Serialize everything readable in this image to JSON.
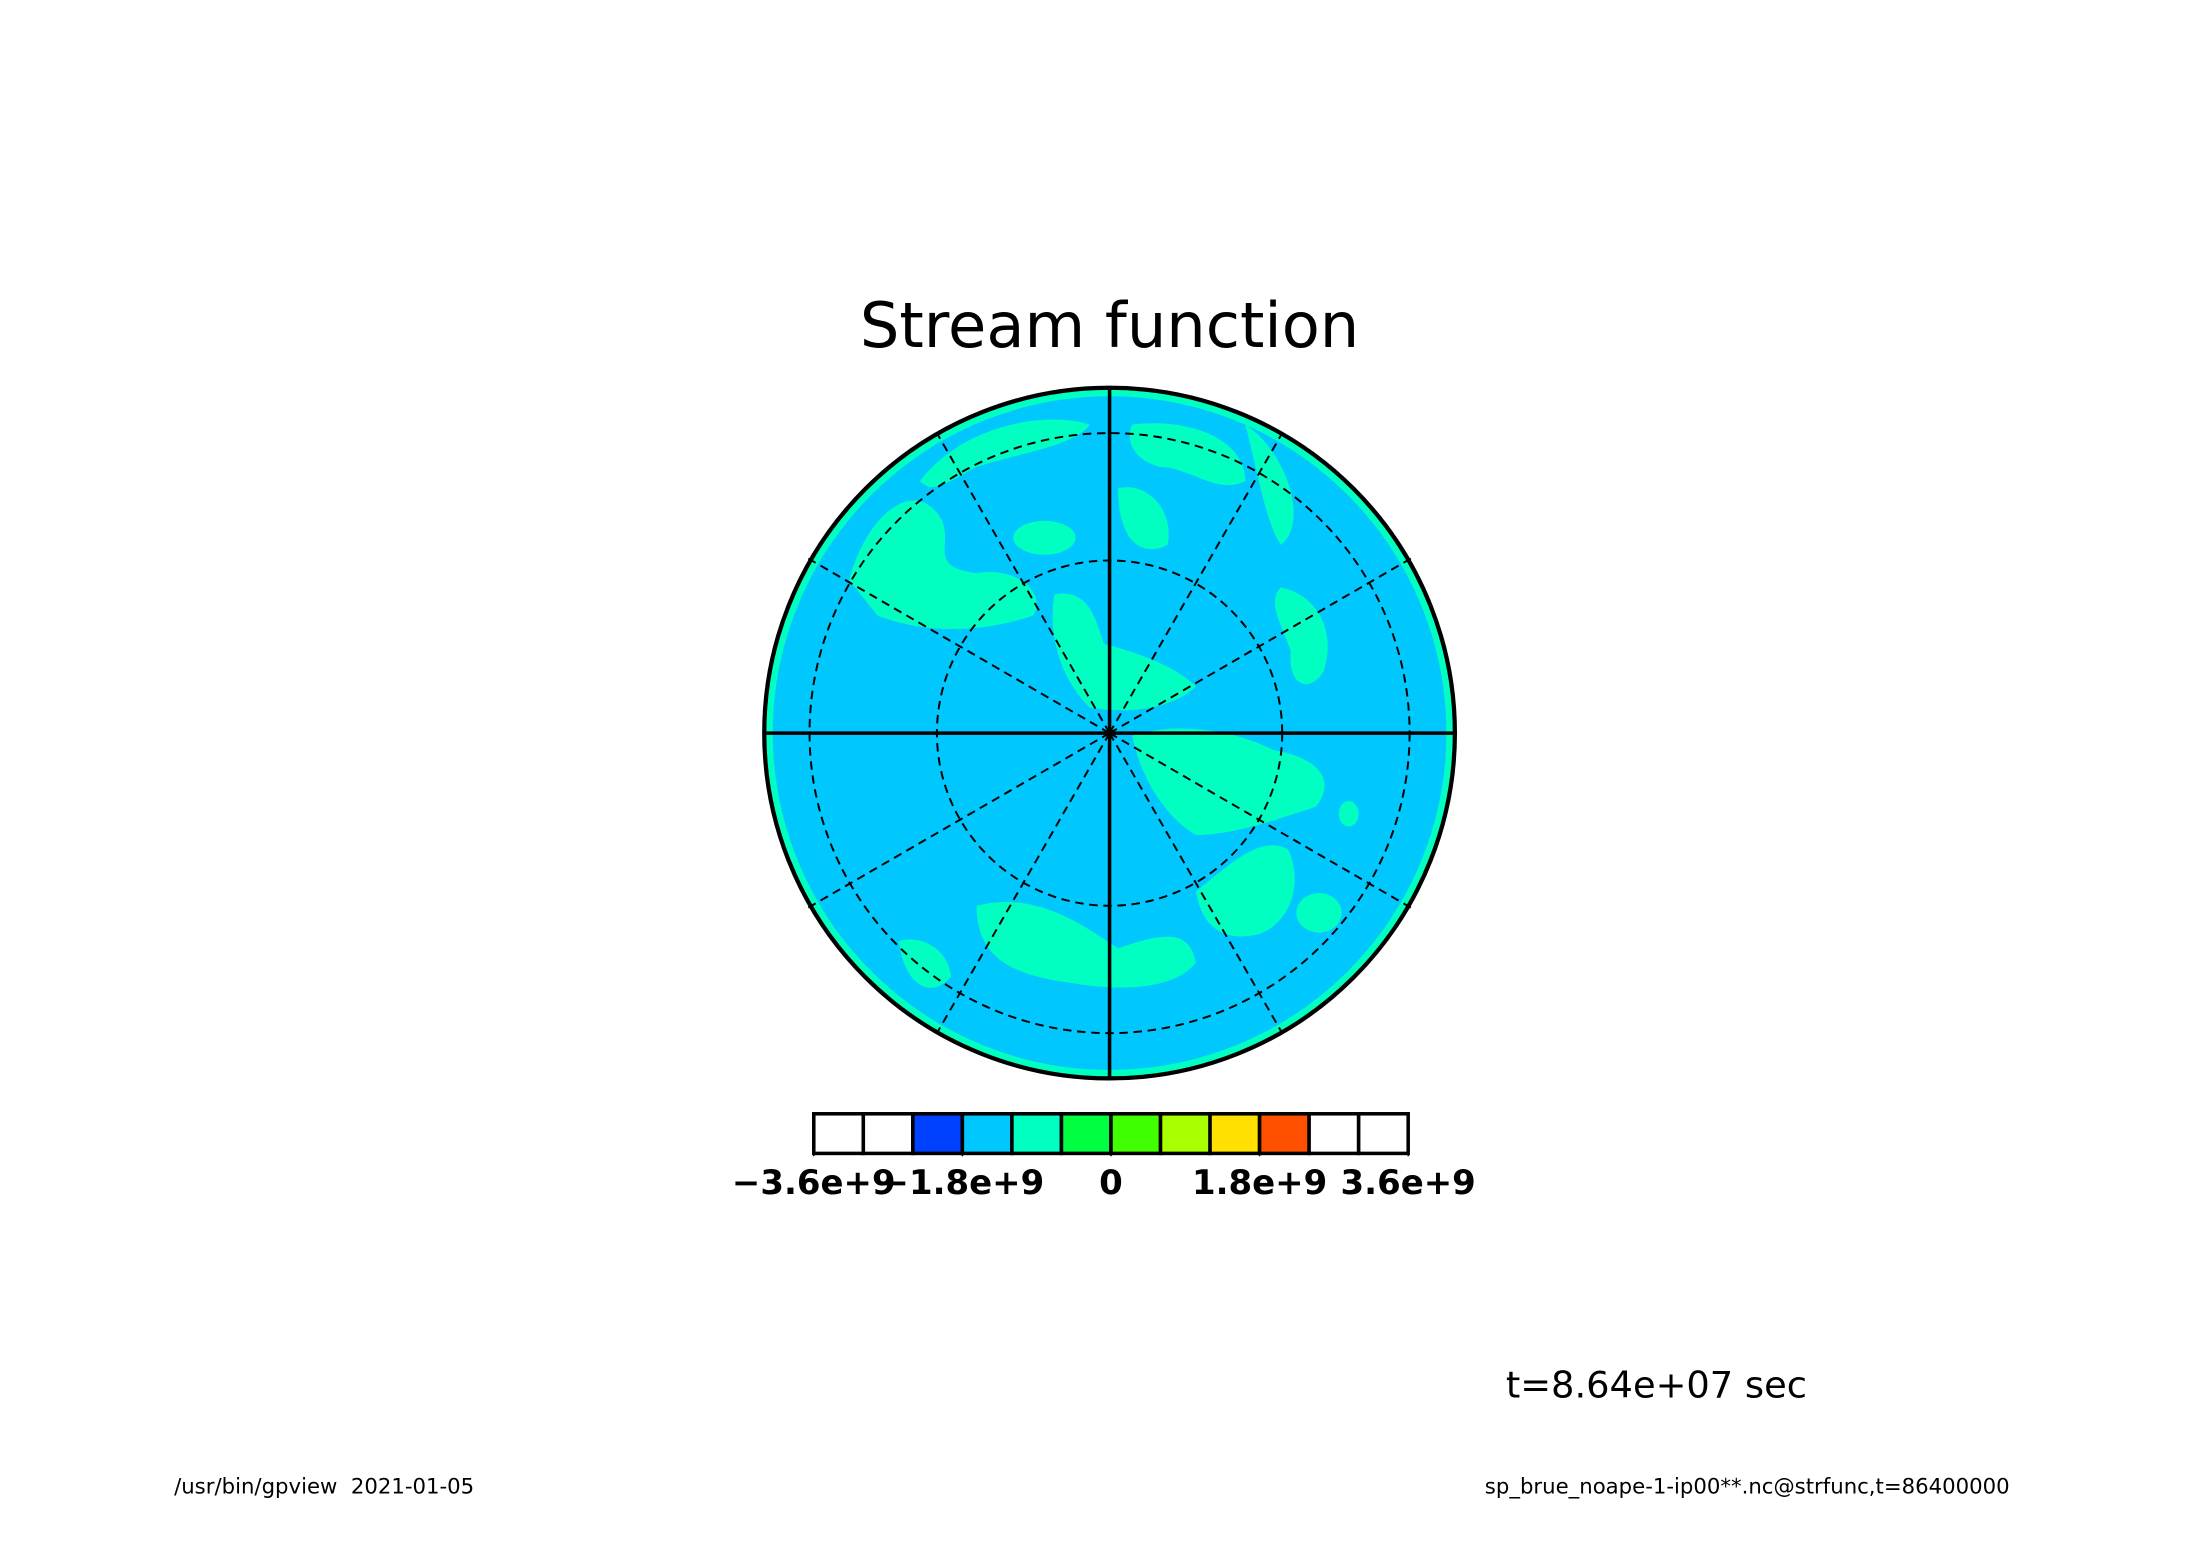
{
  "chart_data": {
    "type": "contour",
    "title": "Stream function",
    "annotation": "t=8.64e+07 sec",
    "footer_left": "/usr/bin/gpview  2021-01-05",
    "footer_right": "sp_brue_noape-1-ip00**.nc@strfunc,t=86400000",
    "colorbar": {
      "lim": [
        -3600000000,
        3600000000
      ],
      "levels": [
        -3600000000,
        -3000000000,
        -2400000000,
        -1800000000,
        -1200000000,
        -600000000,
        0,
        600000000,
        1200000000,
        1800000000,
        2400000000,
        3000000000,
        3600000000
      ],
      "colors": [
        "#ffffff",
        "#ffffff",
        "#0040ff",
        "#00c8ff",
        "#00ffc0",
        "#00ff40",
        "#40ff00",
        "#a8ff00",
        "#ffe000",
        "#ff5000",
        "#ffffff",
        "#ffffff"
      ],
      "ticks": [
        {
          "value": -3600000000,
          "label": "−3.6e+9"
        },
        {
          "value": -1800000000,
          "label": "−1.8e+9"
        },
        0,
        {
          "value": 1800000000,
          "label": "1.8e+9"
        },
        {
          "value": 3600000000,
          "label": "3.6e+9"
        }
      ]
    }
  }
}
